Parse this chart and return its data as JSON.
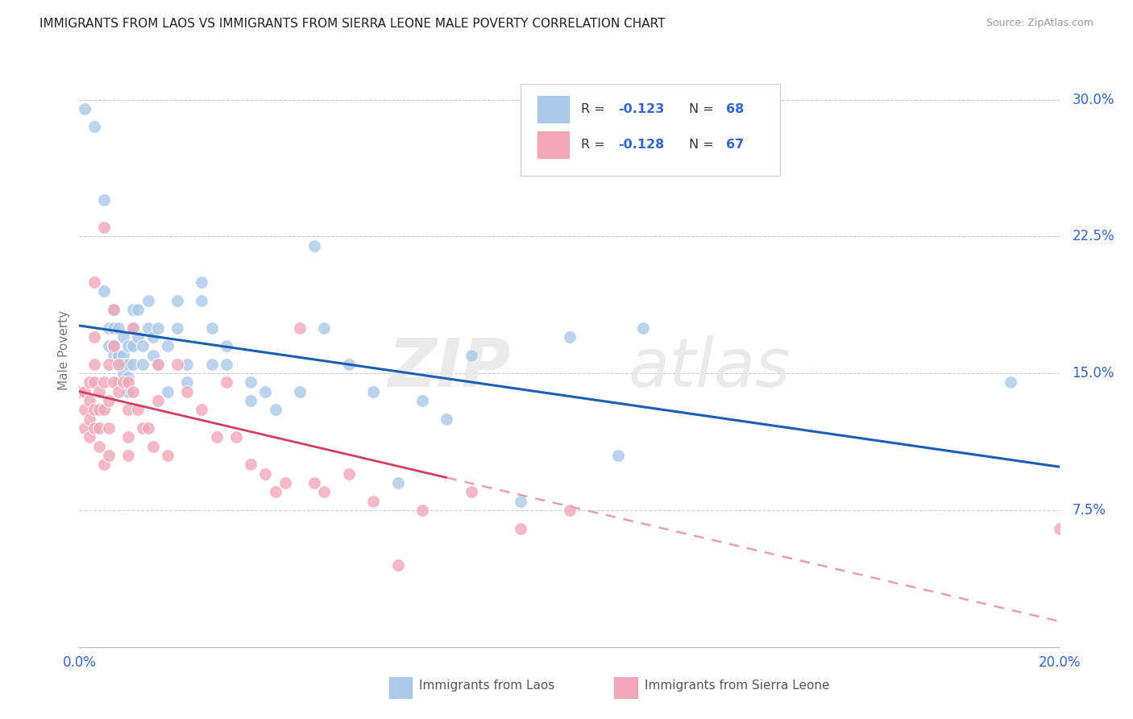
{
  "title": "IMMIGRANTS FROM LAOS VS IMMIGRANTS FROM SIERRA LEONE MALE POVERTY CORRELATION CHART",
  "source": "Source: ZipAtlas.com",
  "ylabel": "Male Poverty",
  "xlim": [
    0.0,
    0.2
  ],
  "ylim": [
    0.0,
    0.325
  ],
  "ytick_values": [
    0.075,
    0.15,
    0.225,
    0.3
  ],
  "ytick_labels": [
    "7.5%",
    "15.0%",
    "22.5%",
    "30.0%"
  ],
  "label1": "Immigrants from Laos",
  "label2": "Immigrants from Sierra Leone",
  "color1": "#aac8e8",
  "color2": "#f0a8b8",
  "line_color1": "#1a5fb4",
  "line_color2_solid": "#d04060",
  "line_color2_dashed": "#e8a0b0",
  "title_fontsize": 11,
  "laos_points": [
    [
      0.001,
      0.295
    ],
    [
      0.003,
      0.285
    ],
    [
      0.005,
      0.245
    ],
    [
      0.005,
      0.195
    ],
    [
      0.006,
      0.175
    ],
    [
      0.006,
      0.165
    ],
    [
      0.007,
      0.185
    ],
    [
      0.007,
      0.175
    ],
    [
      0.007,
      0.165
    ],
    [
      0.007,
      0.16
    ],
    [
      0.008,
      0.175
    ],
    [
      0.008,
      0.16
    ],
    [
      0.008,
      0.155
    ],
    [
      0.008,
      0.145
    ],
    [
      0.009,
      0.17
    ],
    [
      0.009,
      0.16
    ],
    [
      0.009,
      0.155
    ],
    [
      0.009,
      0.15
    ],
    [
      0.01,
      0.165
    ],
    [
      0.01,
      0.155
    ],
    [
      0.01,
      0.148
    ],
    [
      0.01,
      0.14
    ],
    [
      0.011,
      0.185
    ],
    [
      0.011,
      0.175
    ],
    [
      0.011,
      0.165
    ],
    [
      0.011,
      0.155
    ],
    [
      0.012,
      0.185
    ],
    [
      0.012,
      0.17
    ],
    [
      0.013,
      0.165
    ],
    [
      0.013,
      0.155
    ],
    [
      0.014,
      0.19
    ],
    [
      0.014,
      0.175
    ],
    [
      0.015,
      0.17
    ],
    [
      0.015,
      0.16
    ],
    [
      0.016,
      0.175
    ],
    [
      0.016,
      0.155
    ],
    [
      0.018,
      0.165
    ],
    [
      0.018,
      0.14
    ],
    [
      0.02,
      0.19
    ],
    [
      0.02,
      0.175
    ],
    [
      0.022,
      0.155
    ],
    [
      0.022,
      0.145
    ],
    [
      0.025,
      0.2
    ],
    [
      0.025,
      0.19
    ],
    [
      0.027,
      0.175
    ],
    [
      0.027,
      0.155
    ],
    [
      0.03,
      0.165
    ],
    [
      0.03,
      0.155
    ],
    [
      0.035,
      0.145
    ],
    [
      0.035,
      0.135
    ],
    [
      0.038,
      0.14
    ],
    [
      0.04,
      0.13
    ],
    [
      0.045,
      0.14
    ],
    [
      0.048,
      0.22
    ],
    [
      0.05,
      0.175
    ],
    [
      0.055,
      0.155
    ],
    [
      0.06,
      0.14
    ],
    [
      0.065,
      0.09
    ],
    [
      0.07,
      0.135
    ],
    [
      0.075,
      0.125
    ],
    [
      0.08,
      0.16
    ],
    [
      0.09,
      0.08
    ],
    [
      0.1,
      0.17
    ],
    [
      0.11,
      0.105
    ],
    [
      0.115,
      0.175
    ],
    [
      0.19,
      0.145
    ]
  ],
  "sierra_points": [
    [
      0.0,
      0.14
    ],
    [
      0.001,
      0.14
    ],
    [
      0.001,
      0.13
    ],
    [
      0.001,
      0.12
    ],
    [
      0.002,
      0.145
    ],
    [
      0.002,
      0.135
    ],
    [
      0.002,
      0.125
    ],
    [
      0.002,
      0.115
    ],
    [
      0.003,
      0.2
    ],
    [
      0.003,
      0.17
    ],
    [
      0.003,
      0.155
    ],
    [
      0.003,
      0.145
    ],
    [
      0.003,
      0.13
    ],
    [
      0.003,
      0.12
    ],
    [
      0.004,
      0.14
    ],
    [
      0.004,
      0.13
    ],
    [
      0.004,
      0.12
    ],
    [
      0.004,
      0.11
    ],
    [
      0.005,
      0.23
    ],
    [
      0.005,
      0.145
    ],
    [
      0.005,
      0.13
    ],
    [
      0.005,
      0.1
    ],
    [
      0.006,
      0.155
    ],
    [
      0.006,
      0.135
    ],
    [
      0.006,
      0.12
    ],
    [
      0.006,
      0.105
    ],
    [
      0.007,
      0.185
    ],
    [
      0.007,
      0.165
    ],
    [
      0.007,
      0.145
    ],
    [
      0.008,
      0.155
    ],
    [
      0.008,
      0.14
    ],
    [
      0.009,
      0.145
    ],
    [
      0.01,
      0.145
    ],
    [
      0.01,
      0.13
    ],
    [
      0.01,
      0.115
    ],
    [
      0.01,
      0.105
    ],
    [
      0.011,
      0.175
    ],
    [
      0.011,
      0.14
    ],
    [
      0.012,
      0.13
    ],
    [
      0.013,
      0.12
    ],
    [
      0.014,
      0.12
    ],
    [
      0.015,
      0.11
    ],
    [
      0.016,
      0.155
    ],
    [
      0.016,
      0.135
    ],
    [
      0.018,
      0.105
    ],
    [
      0.02,
      0.155
    ],
    [
      0.022,
      0.14
    ],
    [
      0.025,
      0.13
    ],
    [
      0.028,
      0.115
    ],
    [
      0.03,
      0.145
    ],
    [
      0.032,
      0.115
    ],
    [
      0.035,
      0.1
    ],
    [
      0.038,
      0.095
    ],
    [
      0.04,
      0.085
    ],
    [
      0.042,
      0.09
    ],
    [
      0.045,
      0.175
    ],
    [
      0.048,
      0.09
    ],
    [
      0.05,
      0.085
    ],
    [
      0.055,
      0.095
    ],
    [
      0.06,
      0.08
    ],
    [
      0.065,
      0.045
    ],
    [
      0.07,
      0.075
    ],
    [
      0.08,
      0.085
    ],
    [
      0.09,
      0.065
    ],
    [
      0.1,
      0.075
    ],
    [
      0.2,
      0.065
    ]
  ]
}
